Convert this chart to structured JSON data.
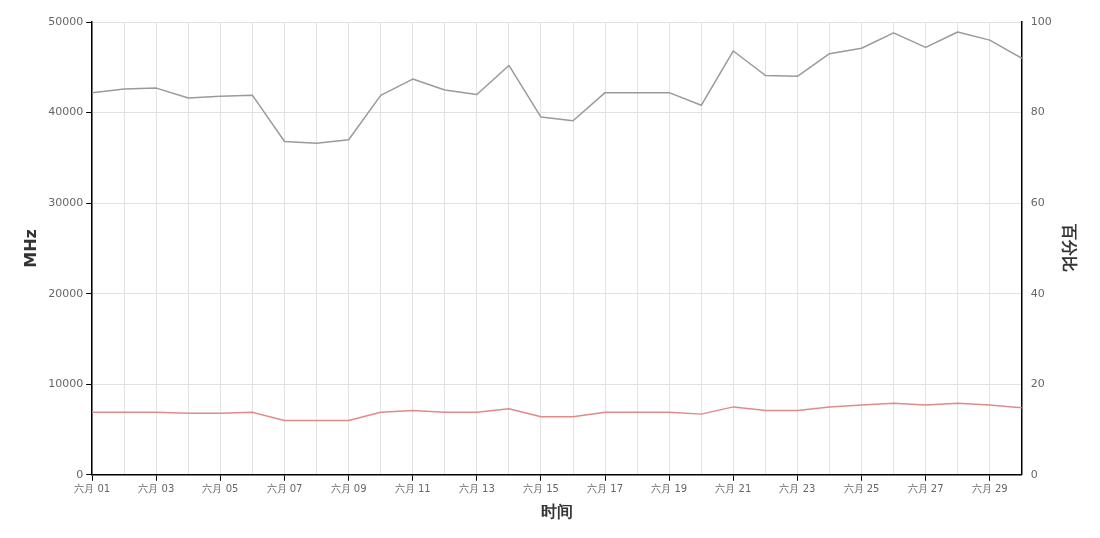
{
  "chart_data": {
    "type": "line",
    "xlabel": "时间",
    "ylabel": "MHz",
    "y2label": "百分比",
    "categories": [
      "六月 01",
      null,
      "六月 03",
      null,
      "六月 05",
      null,
      "六月 07",
      null,
      "六月 09",
      null,
      "六月 11",
      null,
      "六月 13",
      null,
      "六月 15",
      null,
      "六月 17",
      null,
      "六月 19",
      null,
      "六月 21",
      null,
      "六月 23",
      null,
      "六月 25",
      null,
      "六月 27",
      null,
      "六月 29",
      null
    ],
    "series": [
      {
        "color": "#9a9a9a",
        "values": [
          42200,
          42600,
          42700,
          41600,
          41800,
          41900,
          36800,
          36600,
          37000,
          41900,
          43700,
          42500,
          42000,
          45200,
          39500,
          39100,
          42200,
          42200,
          42200,
          40800,
          46800,
          44100,
          44000,
          46500,
          47100,
          48800,
          47200,
          48900,
          48000,
          46000
        ]
      },
      {
        "color": "#e08a8a",
        "values": [
          6900,
          6900,
          6900,
          6800,
          6800,
          6900,
          6000,
          6000,
          6000,
          6900,
          7100,
          6900,
          6900,
          7300,
          6400,
          6400,
          6900,
          6900,
          6900,
          6700,
          7500,
          7100,
          7100,
          7500,
          7700,
          7900,
          7700,
          7900,
          7700,
          7400
        ]
      }
    ],
    "ylim": [
      0,
      50000
    ],
    "yticks": [
      0,
      10000,
      20000,
      30000,
      40000,
      50000
    ],
    "y2lim": [
      0,
      100
    ],
    "y2ticks": [
      0,
      20,
      40,
      60,
      80,
      100
    ],
    "grid": true,
    "legend": false,
    "marker": "none",
    "line_style": "solid"
  }
}
